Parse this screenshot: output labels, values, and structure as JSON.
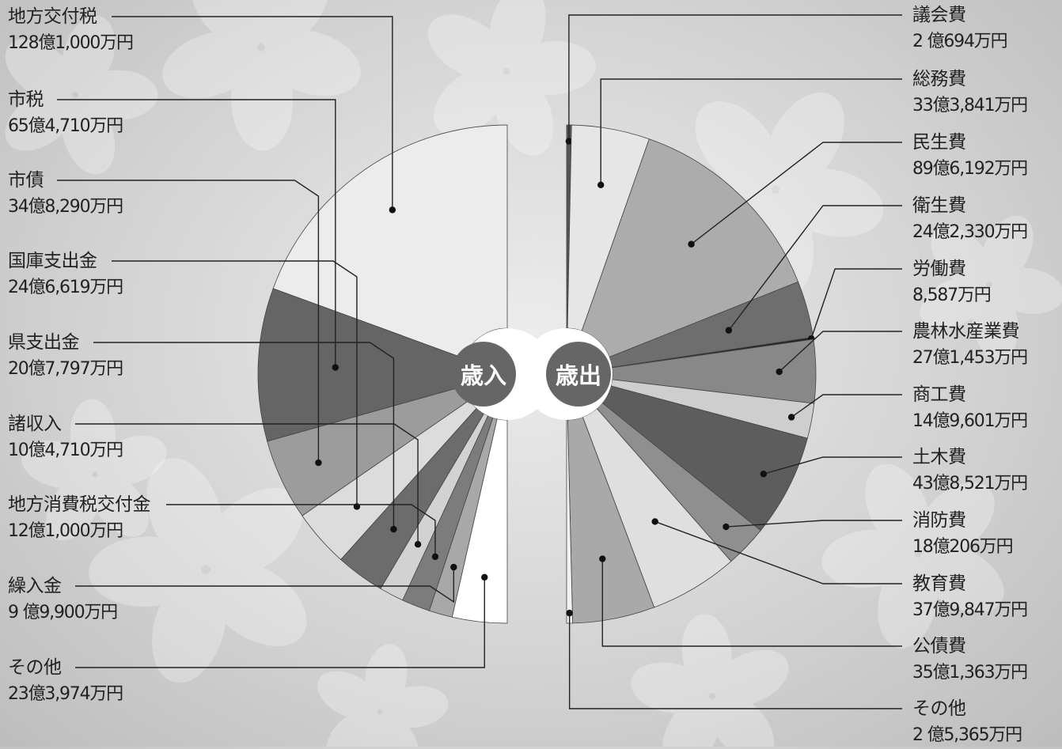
{
  "chart_data": {
    "type": "pie",
    "layout": "two half-donuts with leader-line labels",
    "center_labels": {
      "revenue": "歳入",
      "expenditure": "歳出"
    },
    "revenue": {
      "slices": [
        {
          "name": "地方交付税",
          "amount_label": "128億1,000万円",
          "value": 1281000,
          "color": "#ececec"
        },
        {
          "name": "市税",
          "amount_label": "65億4,710万円",
          "value": 654710,
          "color": "#656565"
        },
        {
          "name": "市債",
          "amount_label": "34億8,290万円",
          "value": 348290,
          "color": "#9c9c9c"
        },
        {
          "name": "国庫支出金",
          "amount_label": "24億6,619万円",
          "value": 246619,
          "color": "#dcdcdc"
        },
        {
          "name": "県支出金",
          "amount_label": "20億7,797万円",
          "value": 207797,
          "color": "#6c6c6c"
        },
        {
          "name": "諸収入",
          "amount_label": "10億4,710万円",
          "value": 104710,
          "color": "#d2d2d2"
        },
        {
          "name": "地方消費税交付金",
          "amount_label": "12億1,000万円",
          "value": 121000,
          "color": "#7c7c7c"
        },
        {
          "name": "繰入金",
          "amount_label": " 9 億9,900万円",
          "value": 99900,
          "color": "#a8a8a8"
        },
        {
          "name": "その他",
          "amount_label": "23億3,974万円",
          "value": 233974,
          "color": "#ffffff"
        }
      ]
    },
    "expenditure": {
      "slices": [
        {
          "name": "議会費",
          "amount_label": " 2 億694万円",
          "value": 20694,
          "color": "#555555"
        },
        {
          "name": "総務費",
          "amount_label": "33億3,841万円",
          "value": 333841,
          "color": "#e6e6e6"
        },
        {
          "name": "民生費",
          "amount_label": "89億6,192万円",
          "value": 896192,
          "color": "#acacac"
        },
        {
          "name": "衛生費",
          "amount_label": "24億2,330万円",
          "value": 242330,
          "color": "#6e6e6e"
        },
        {
          "name": "労働費",
          "amount_label": "8,587万円",
          "value": 8587,
          "color": "#222222"
        },
        {
          "name": "農林水産業費",
          "amount_label": "27億1,453万円",
          "value": 271453,
          "color": "#888888"
        },
        {
          "name": "商工費",
          "amount_label": "14億9,601万円",
          "value": 149601,
          "color": "#cecece"
        },
        {
          "name": "土木費",
          "amount_label": "43億8,521万円",
          "value": 438521,
          "color": "#5d5d5d"
        },
        {
          "name": "消防費",
          "amount_label": "18億206万円",
          "value": 180206,
          "color": "#8f8f8f"
        },
        {
          "name": "教育費",
          "amount_label": "37億9,847万円",
          "value": 379847,
          "color": "#dfdfdf"
        },
        {
          "name": "公債費",
          "amount_label": "35億1,363万円",
          "value": 351363,
          "color": "#a9a9a9"
        },
        {
          "name": "その他",
          "amount_label": " 2 億5,365万円",
          "value": 25365,
          "color": "#f2f2f2"
        }
      ]
    }
  }
}
